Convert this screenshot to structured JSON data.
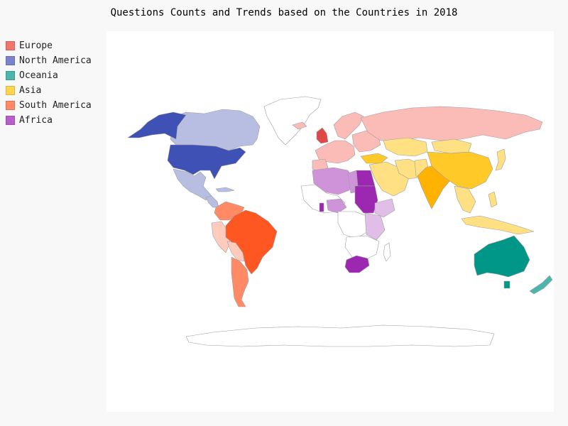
{
  "title": "Questions Counts and Trends based on the Countries in 2018",
  "legend": [
    {
      "label": "Europe",
      "color": "#f2766b"
    },
    {
      "label": "North America",
      "color": "#7b83cc"
    },
    {
      "label": "Oceania",
      "color": "#4db6ac"
    },
    {
      "label": "Asia",
      "color": "#ffd54f"
    },
    {
      "label": "South America",
      "color": "#ff8a65"
    },
    {
      "label": "Africa",
      "color": "#b85ec9"
    }
  ],
  "map": {
    "projection": "world",
    "colors": {
      "europe_light": "#fbbcb8",
      "europe_dark": "#e04848",
      "north_america_light": "#b8bde2",
      "north_america_dark": "#3f51b5",
      "oceania_dark": "#009688",
      "oceania_light": "#4db6ac",
      "asia_light": "#ffe082",
      "asia_mid": "#ffca28",
      "asia_dark": "#ffb300",
      "south_america_light": "#ffcbbd",
      "south_america_mid": "#ff8a65",
      "south_america_dark": "#ff5722",
      "africa_light": "#e1bee7",
      "africa_mid": "#ce93d8",
      "africa_dark": "#9c27b0",
      "no_data": "#ffffff",
      "border": "#9e9e9e"
    }
  }
}
